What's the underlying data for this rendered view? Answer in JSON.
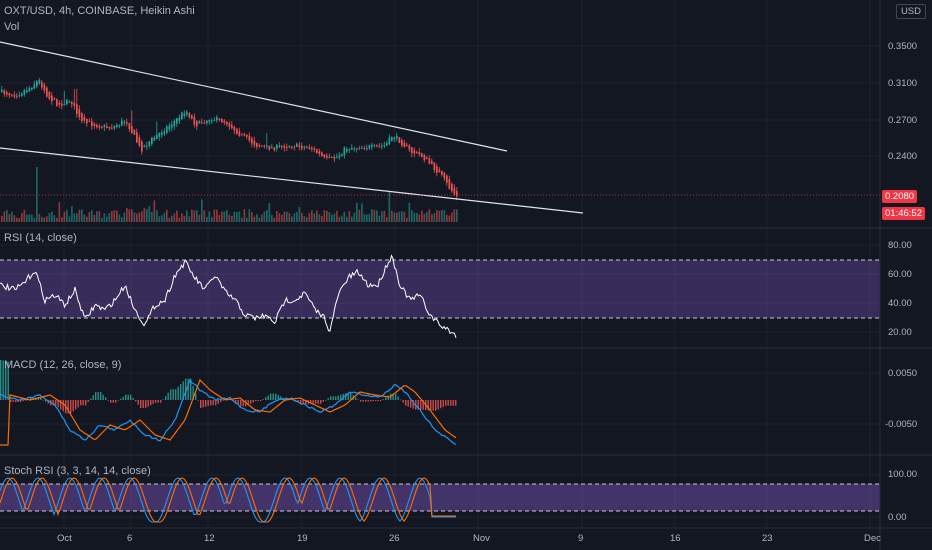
{
  "header": {
    "symbol_line": "OXT/USD, 4h, COINBASE, Heikin Ashi",
    "vol_label": "Vol",
    "currency": "USD"
  },
  "price_axis": [
    "0.3500",
    "0.3100",
    "0.2700",
    "0.2400"
  ],
  "price_tag": "0.2080",
  "countdown_tag": "01:46:52",
  "rsi": {
    "label": "RSI (14, close)",
    "ticks": [
      "80.00",
      "60.00",
      "40.00",
      "20.00"
    ],
    "upper_band": 70,
    "lower_band": 30
  },
  "macd": {
    "label": "MACD (12, 26, close, 9)",
    "ticks": [
      "0.0050",
      "-0.0050"
    ]
  },
  "stoch": {
    "label": "Stoch RSI (3, 3, 14, 14, close)",
    "ticks": [
      "100.00",
      "0.00"
    ]
  },
  "time_axis": [
    "Oct",
    "6",
    "12",
    "19",
    "26",
    "Nov",
    "9",
    "16",
    "23",
    "Dec"
  ],
  "colors": {
    "background": "#131722",
    "up_candle": "#26a69a",
    "down_candle": "#ef5350",
    "rsi_line": "#ffffff",
    "rsi_band": "#7e57c2",
    "macd_line": "#2196f3",
    "signal_line": "#ff6d00",
    "stoch_k": "#2196f3",
    "stoch_d": "#ff6d00",
    "price_tag": "#f23645"
  }
}
